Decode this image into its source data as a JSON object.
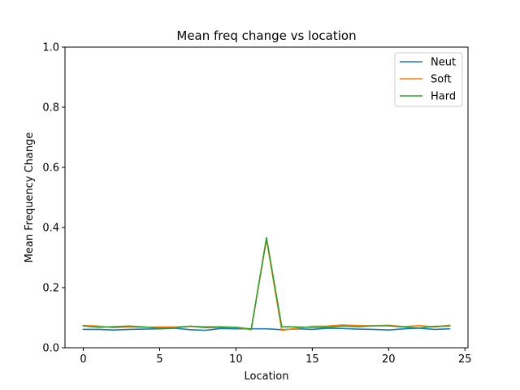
{
  "chart_data": {
    "type": "line",
    "title": "Mean freq change vs location",
    "xlabel": "Location",
    "ylabel": "Mean Frequency Change",
    "xlim": [
      -1.2,
      25.2
    ],
    "ylim": [
      0,
      1.0
    ],
    "xticks": [
      0,
      5,
      10,
      15,
      20,
      25
    ],
    "yticks": [
      0.0,
      0.2,
      0.4,
      0.6,
      0.8,
      1.0
    ],
    "xtick_labels": [
      "0",
      "5",
      "10",
      "15",
      "20",
      "25"
    ],
    "ytick_labels": [
      "0.0",
      "0.2",
      "0.4",
      "0.6",
      "0.8",
      "1.0"
    ],
    "grid": false,
    "legend_position": "top-right",
    "x": [
      0,
      1,
      2,
      3,
      4,
      5,
      6,
      7,
      8,
      9,
      10,
      11,
      12,
      13,
      14,
      15,
      16,
      17,
      18,
      19,
      20,
      21,
      22,
      23,
      24
    ],
    "series": [
      {
        "name": "Neut",
        "color": "#1f77b4",
        "values": [
          0.061,
          0.061,
          0.059,
          0.061,
          0.062,
          0.063,
          0.065,
          0.06,
          0.058,
          0.064,
          0.063,
          0.063,
          0.063,
          0.06,
          0.063,
          0.061,
          0.065,
          0.064,
          0.062,
          0.061,
          0.059,
          0.063,
          0.065,
          0.061,
          0.063
        ]
      },
      {
        "name": "Soft",
        "color": "#ff7f0e",
        "values": [
          0.074,
          0.072,
          0.067,
          0.069,
          0.068,
          0.069,
          0.069,
          0.071,
          0.07,
          0.07,
          0.068,
          0.06,
          0.36,
          0.058,
          0.065,
          0.071,
          0.072,
          0.076,
          0.074,
          0.073,
          0.075,
          0.07,
          0.074,
          0.069,
          0.075
        ]
      },
      {
        "name": "Hard",
        "color": "#2ca02c",
        "values": [
          0.073,
          0.068,
          0.07,
          0.072,
          0.069,
          0.065,
          0.066,
          0.072,
          0.067,
          0.068,
          0.068,
          0.062,
          0.366,
          0.07,
          0.069,
          0.068,
          0.068,
          0.072,
          0.07,
          0.073,
          0.073,
          0.069,
          0.066,
          0.071,
          0.072
        ]
      }
    ]
  }
}
